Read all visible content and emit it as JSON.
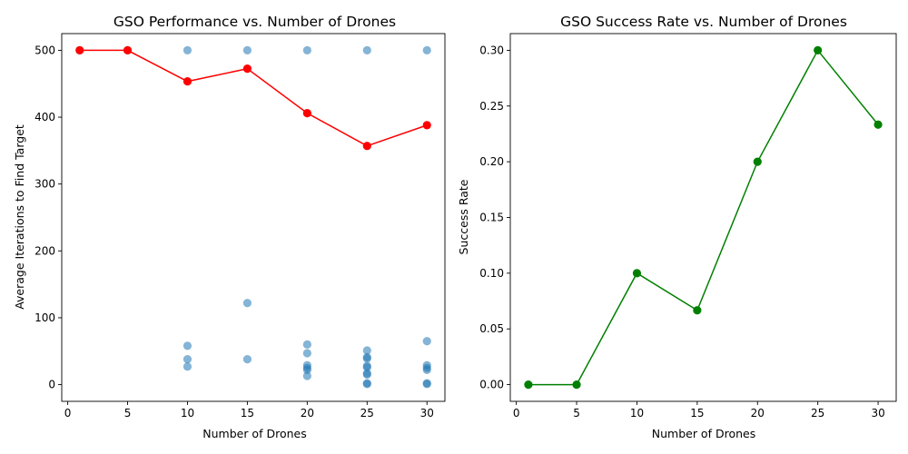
{
  "chart_data": [
    {
      "type": "scatter",
      "title": "GSO Performance vs. Number of Drones",
      "xlabel": "Number of Drones",
      "ylabel": "Average Iterations to Find Target",
      "xlim": [
        -0.5,
        31.5
      ],
      "ylim": [
        -25,
        525
      ],
      "xticks": [
        0,
        5,
        10,
        15,
        20,
        25,
        30
      ],
      "yticks": [
        0,
        100,
        200,
        300,
        400,
        500
      ],
      "grid": false,
      "legend": "none",
      "series": [
        {
          "kind": "scatter",
          "color": "#1f77b4",
          "opacity": 0.55,
          "points": [
            [
              1,
              500
            ],
            [
              5,
              500
            ],
            [
              10,
              500
            ],
            [
              10,
              58
            ],
            [
              10,
              38
            ],
            [
              10,
              27
            ],
            [
              15,
              500
            ],
            [
              15,
              122
            ],
            [
              15,
              38
            ],
            [
              20,
              500
            ],
            [
              20,
              60
            ],
            [
              20,
              47
            ],
            [
              20,
              29
            ],
            [
              20,
              25
            ],
            [
              20,
              22
            ],
            [
              20,
              13
            ],
            [
              25,
              500
            ],
            [
              25,
              51
            ],
            [
              25,
              41
            ],
            [
              25,
              39
            ],
            [
              25,
              28
            ],
            [
              25,
              26
            ],
            [
              25,
              17
            ],
            [
              25,
              15
            ],
            [
              25,
              2
            ],
            [
              25,
              1
            ],
            [
              30,
              500
            ],
            [
              30,
              65
            ],
            [
              30,
              29
            ],
            [
              30,
              25
            ],
            [
              30,
              22
            ],
            [
              30,
              2
            ],
            [
              30,
              1
            ]
          ]
        },
        {
          "kind": "line",
          "color": "#ff0000",
          "x": [
            1,
            5,
            10,
            15,
            20,
            25,
            30
          ],
          "y": [
            500,
            500,
            453.5,
            472.5,
            406,
            357,
            388
          ]
        }
      ]
    },
    {
      "type": "line",
      "title": "GSO Success Rate vs. Number of Drones",
      "xlabel": "Number of Drones",
      "ylabel": "Success Rate",
      "xlim": [
        -0.5,
        31.5
      ],
      "ylim": [
        -0.015,
        0.315
      ],
      "xticks": [
        0,
        5,
        10,
        15,
        20,
        25,
        30
      ],
      "yticks": [
        "0.00",
        "0.05",
        "0.10",
        "0.15",
        "0.20",
        "0.25",
        "0.30"
      ],
      "grid": false,
      "legend": "none",
      "series": [
        {
          "kind": "line",
          "color": "#008000",
          "x": [
            1,
            5,
            10,
            15,
            20,
            25,
            30
          ],
          "y": [
            0.0,
            0.0,
            0.1,
            0.0667,
            0.2,
            0.3,
            0.2333
          ]
        }
      ]
    }
  ]
}
